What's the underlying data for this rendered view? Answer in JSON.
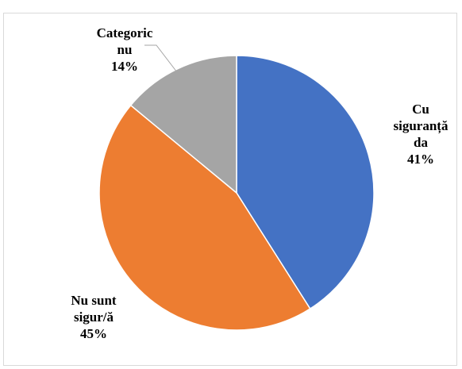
{
  "chart_data": {
    "type": "pie",
    "title": "",
    "slices": [
      {
        "label_lines": [
          "Cu",
          "siguranță",
          "da"
        ],
        "percent_label": "41%",
        "value": 41,
        "color": "#4472C4"
      },
      {
        "label_lines": [
          "Nu sunt",
          "sigur/ă"
        ],
        "percent_label": "45%",
        "value": 45,
        "color": "#ED7D31"
      },
      {
        "label_lines": [
          "Categoric",
          "nu"
        ],
        "percent_label": "14%",
        "value": 14,
        "color": "#A5A5A5"
      }
    ],
    "start_angle_deg": 0,
    "direction": "clockwise",
    "legend": "none",
    "leader_line_color": "#A5A5A5"
  }
}
